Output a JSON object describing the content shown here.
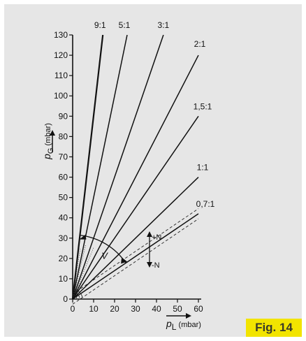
{
  "figure_label": "Fig. 14",
  "chart_data": {
    "type": "line",
    "title": "",
    "xlabel_symbol": "p",
    "xlabel_subscript": "L",
    "xlabel_unit": "(mbar)",
    "ylabel_symbol": "p",
    "ylabel_subscript": "G",
    "ylabel_unit": "(mbar)",
    "xlim": [
      0,
      60
    ],
    "ylim": [
      0,
      130
    ],
    "xticks": [
      "0",
      "10",
      "20",
      "30",
      "40",
      "50",
      "60"
    ],
    "yticks": [
      "0",
      "10",
      "20",
      "30",
      "40",
      "50",
      "60",
      "70",
      "80",
      "90",
      "100",
      "110",
      "120",
      "130"
    ],
    "series": [
      {
        "name": "9:1",
        "x": [
          0,
          14.4
        ],
        "y": [
          0,
          130
        ],
        "bold": true
      },
      {
        "name": "5:1",
        "x": [
          0,
          26
        ],
        "y": [
          0,
          130
        ]
      },
      {
        "name": "3:1",
        "x": [
          0,
          43.3
        ],
        "y": [
          0,
          130
        ]
      },
      {
        "name": "2:1",
        "x": [
          0,
          60
        ],
        "y": [
          0,
          120
        ]
      },
      {
        "name": "1,5:1",
        "x": [
          0,
          60
        ],
        "y": [
          0,
          90
        ]
      },
      {
        "name": "1:1",
        "x": [
          0,
          60
        ],
        "y": [
          0,
          60
        ]
      },
      {
        "name": "0,7:1",
        "x": [
          0,
          60
        ],
        "y": [
          0,
          42
        ]
      }
    ],
    "band": {
      "slope": 0.7,
      "offset": 2.5
    },
    "annotations": {
      "angle_label": "V",
      "plus_label": "+N",
      "minus_label": "-N"
    }
  }
}
